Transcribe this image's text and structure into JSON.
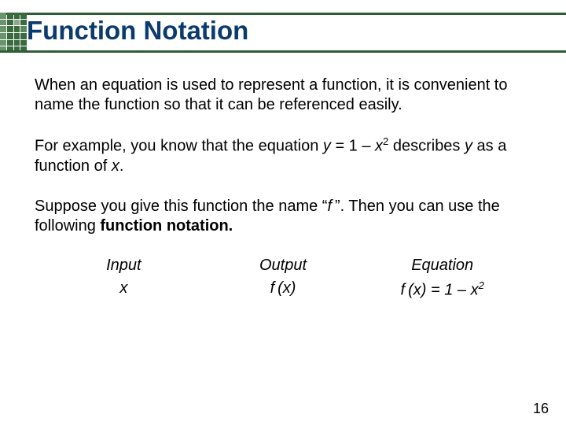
{
  "colors": {
    "header_line": "#2f5d34",
    "title_color": "#0b3a6e",
    "text_color": "#000000"
  },
  "title": "Function Notation",
  "paragraphs": {
    "p1": "When an equation is used to represent a function, it is convenient to name the function so that it can be referenced easily.",
    "p2_a": "For example, you know that the equation ",
    "p2_y": "y",
    "p2_eq": " = 1 – ",
    "p2_x": "x",
    "p2_sup": "2",
    "p2_b": " describes ",
    "p2_y2": "y",
    "p2_c": " as a function of ",
    "p2_x2": "x",
    "p2_d": ".",
    "p3_a": "Suppose you give this function the name “",
    "p3_f": "f ",
    "p3_b": "”. Then you can use the following ",
    "p3_bold": "function notation.",
    "p3_c": ""
  },
  "columns": {
    "input": {
      "head": "Input",
      "val_a": "x",
      "val_b": ""
    },
    "output": {
      "head": "Output",
      "val_a": "f (x)",
      "val_b": ""
    },
    "equation": {
      "head": "Equation",
      "val_a": "f (x) = 1 – x",
      "val_sup": "2"
    }
  },
  "page_number": "16"
}
